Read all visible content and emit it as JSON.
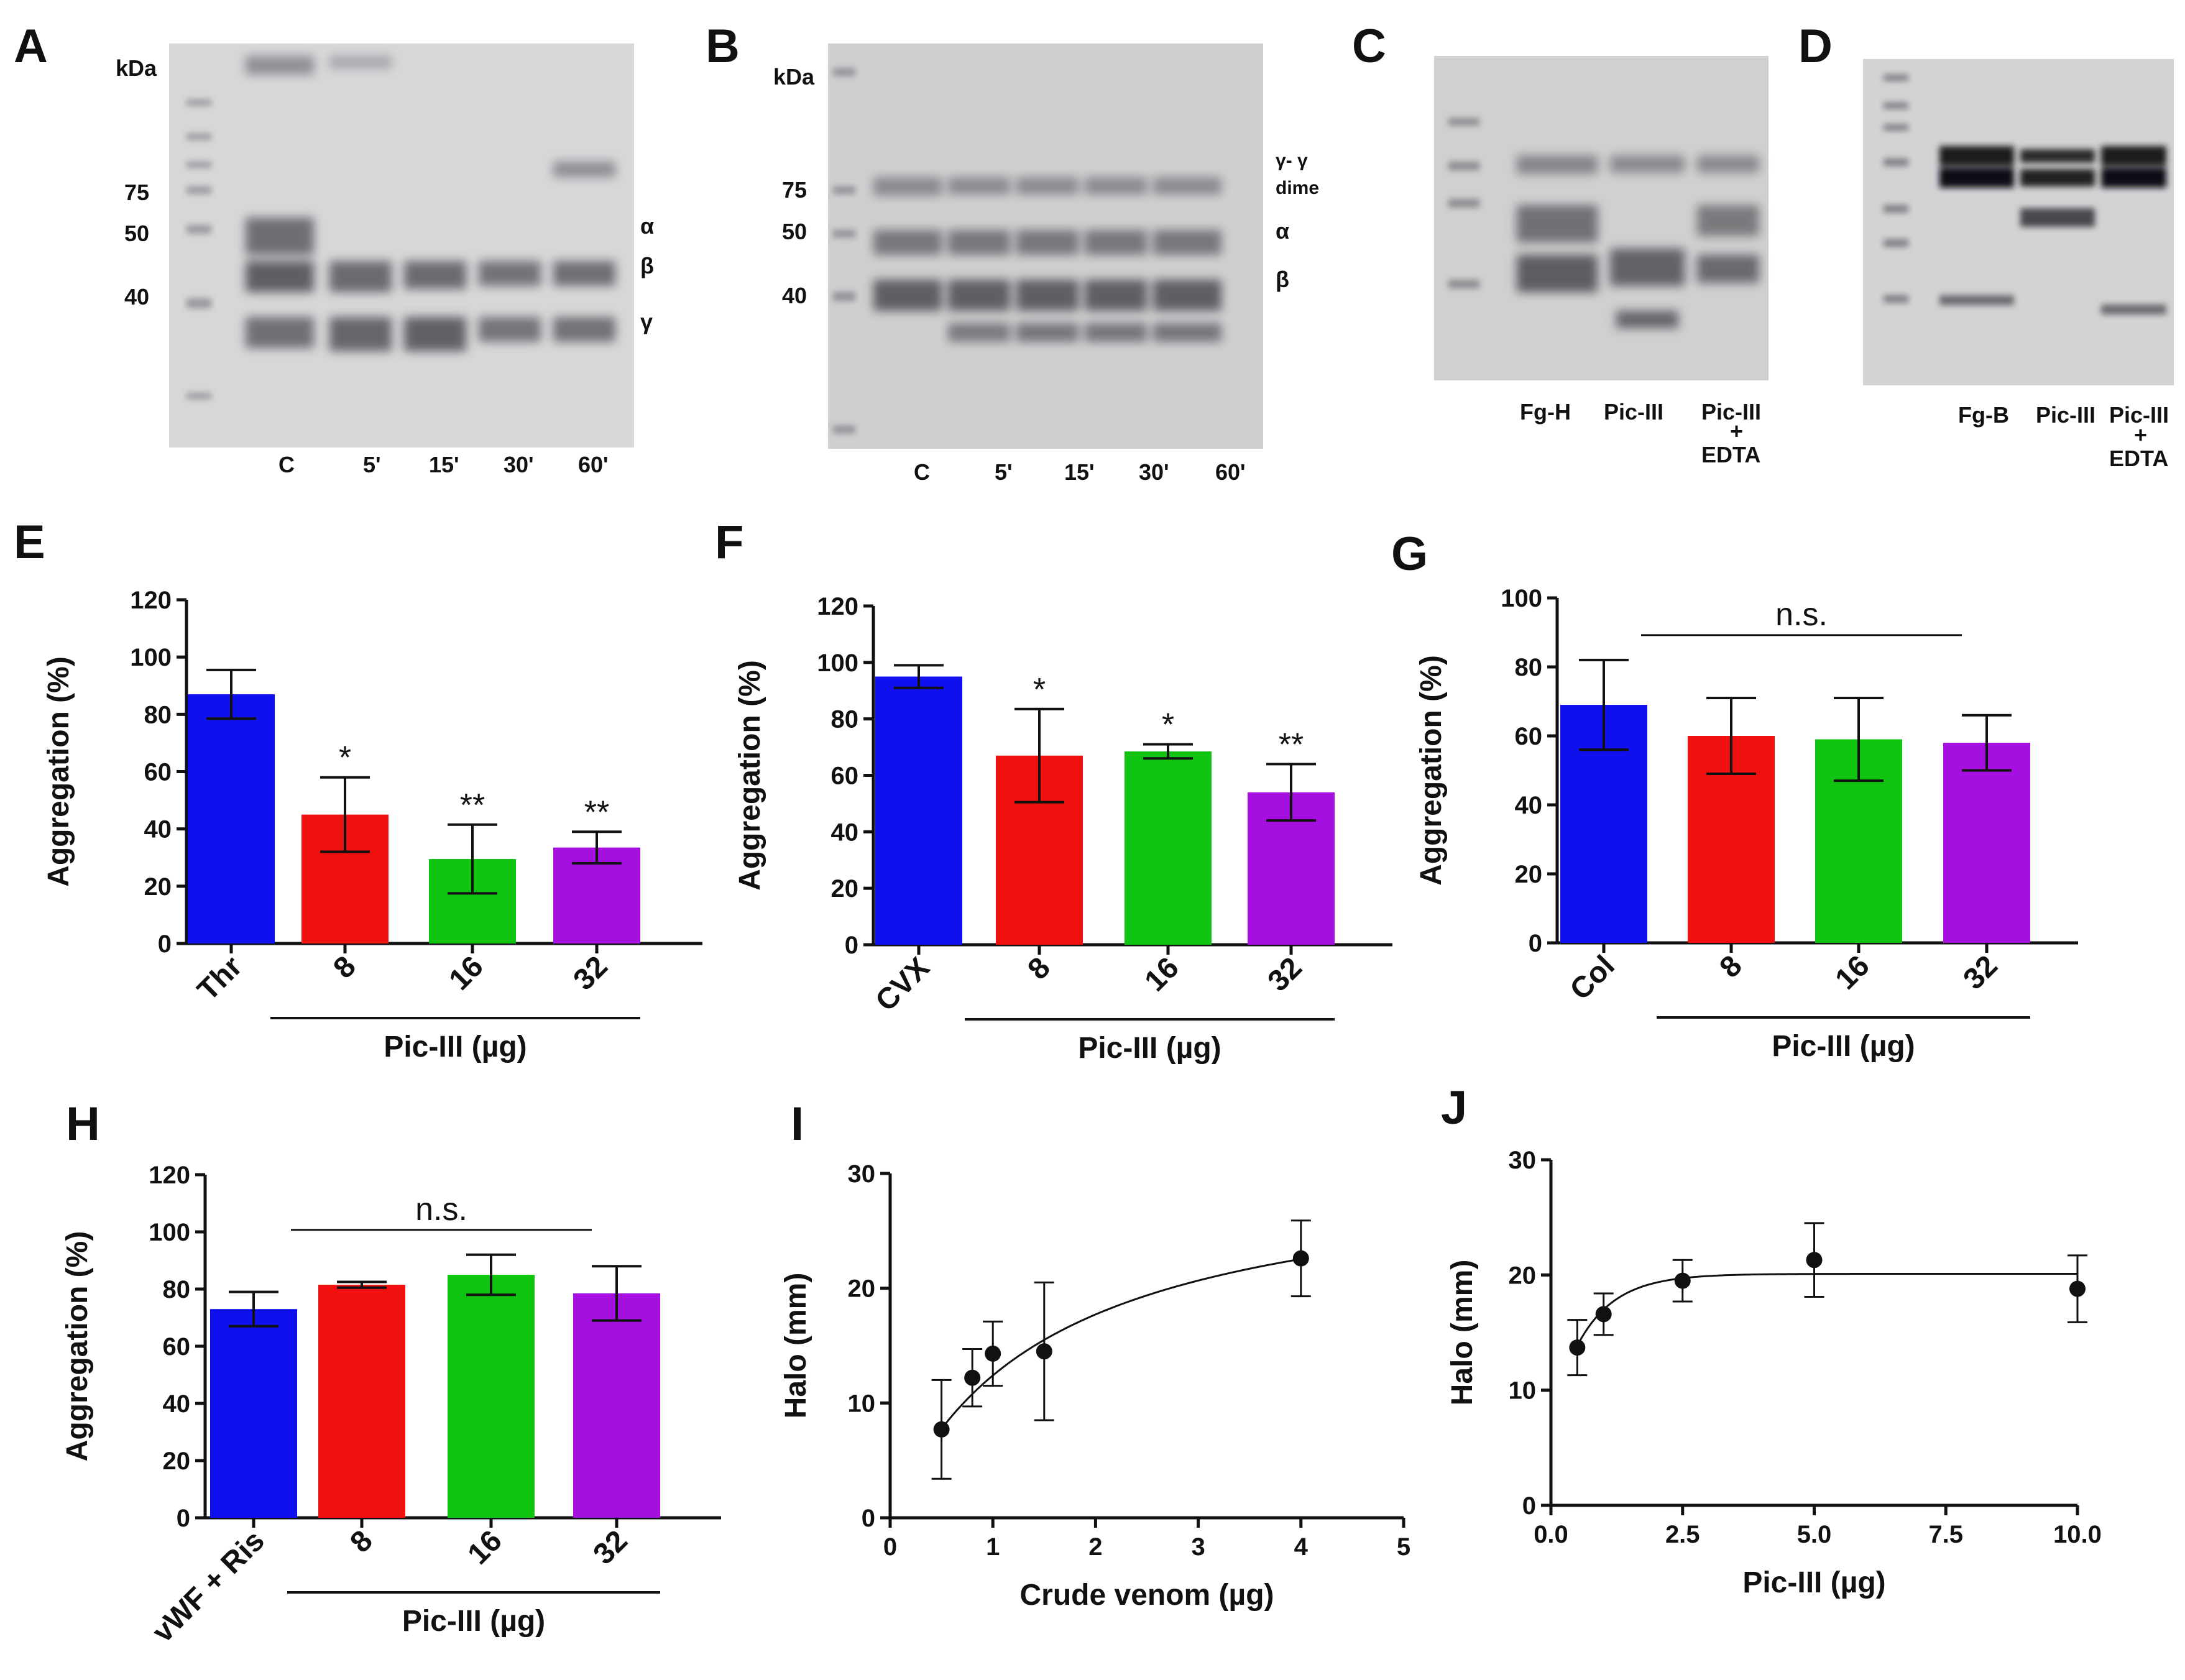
{
  "panels": {
    "A": {
      "label": "A",
      "kda": "kDa",
      "markers": [
        "75",
        "50",
        "40"
      ],
      "chains": [
        "α",
        "β",
        "γ"
      ],
      "lanes": [
        "C",
        "5'",
        "15'",
        "30'",
        "60'"
      ]
    },
    "B": {
      "label": "B",
      "kda": "kDa",
      "markers": [
        "75",
        "50",
        "40"
      ],
      "chains": [
        "γ- γ",
        "dime",
        "α",
        "β"
      ],
      "lanes": [
        "C",
        "5'",
        "15'",
        "30'",
        "60'"
      ]
    },
    "C": {
      "label": "C",
      "lanes": [
        "Fg-H",
        "Pic-III",
        "Pic-III",
        "+",
        "EDTA"
      ]
    },
    "D": {
      "label": "D",
      "lanes": [
        "Fg-B",
        "Pic-III",
        "Pic-III",
        "+",
        "EDTA"
      ]
    },
    "E": {
      "label": "E"
    },
    "F": {
      "label": "F"
    },
    "G": {
      "label": "G"
    },
    "H": {
      "label": "H"
    },
    "I": {
      "label": "I"
    },
    "J": {
      "label": "J"
    }
  },
  "colors": {
    "blue": "#1010ee",
    "red": "#f01010",
    "green": "#12c412",
    "purple": "#a510e0"
  },
  "chart_data": [
    {
      "id": "E",
      "type": "bar",
      "categories": [
        "Thr",
        "8",
        "16",
        "32"
      ],
      "values": [
        87,
        45,
        29.5,
        33.5
      ],
      "errors": [
        8.5,
        13,
        12,
        5.5
      ],
      "significance": [
        "",
        "*",
        "**",
        "**"
      ],
      "ylabel": "Aggregation (%)",
      "ylim": [
        0,
        120
      ],
      "yticks": [
        0,
        20,
        40,
        60,
        80,
        100,
        120
      ],
      "group_label": "Pic-III (µg)",
      "colors": [
        "#1010ee",
        "#f01010",
        "#12c412",
        "#a510e0"
      ]
    },
    {
      "id": "F",
      "type": "bar",
      "categories": [
        "CVX",
        "8",
        "16",
        "32"
      ],
      "values": [
        95,
        67,
        68.5,
        54
      ],
      "errors": [
        4,
        16.5,
        2.5,
        10
      ],
      "significance": [
        "",
        "*",
        "*",
        "**"
      ],
      "ylabel": "Aggregation (%)",
      "ylim": [
        0,
        120
      ],
      "yticks": [
        0,
        20,
        40,
        60,
        80,
        100,
        120
      ],
      "group_label": "Pic-III (µg)",
      "colors": [
        "#1010ee",
        "#f01010",
        "#12c412",
        "#a510e0"
      ]
    },
    {
      "id": "G",
      "type": "bar",
      "categories": [
        "Col",
        "8",
        "16",
        "32"
      ],
      "values": [
        69,
        60,
        59,
        58
      ],
      "errors": [
        13,
        11,
        12,
        8
      ],
      "significance": [
        "",
        "",
        "",
        ""
      ],
      "ns": "n.s.",
      "ylabel": "Aggregation (%)",
      "ylim": [
        0,
        100
      ],
      "yticks": [
        0,
        20,
        40,
        60,
        80,
        100
      ],
      "group_label": "Pic-III (µg)",
      "colors": [
        "#1010ee",
        "#f01010",
        "#12c412",
        "#a510e0"
      ]
    },
    {
      "id": "H",
      "type": "bar",
      "categories": [
        "vWF + Ris",
        "8",
        "16",
        "32"
      ],
      "values": [
        73,
        81.5,
        85,
        78.5
      ],
      "errors": [
        6,
        1,
        7,
        9.5
      ],
      "significance": [
        "",
        "",
        "",
        ""
      ],
      "ns": "n.s.",
      "ylabel": "Aggregation (%)",
      "ylim": [
        0,
        120
      ],
      "yticks": [
        0,
        20,
        40,
        60,
        80,
        100,
        120
      ],
      "group_label": "Pic-III (µg)",
      "colors": [
        "#1010ee",
        "#f01010",
        "#12c412",
        "#a510e0"
      ]
    },
    {
      "id": "I",
      "type": "scatter",
      "x": [
        0.5,
        0.8,
        1,
        1.5,
        4
      ],
      "y": [
        7.7,
        12.2,
        14.3,
        14.5,
        22.6
      ],
      "errors": [
        4.3,
        2.5,
        2.8,
        6,
        3.3
      ],
      "fit": "saturation",
      "xlabel": "Crude venom (µg)",
      "ylabel": "Halo (mm)",
      "xlim": [
        0,
        5
      ],
      "ylim": [
        0,
        30
      ],
      "xticks": [
        "0",
        "1",
        "2",
        "3",
        "4",
        "5"
      ],
      "yticks": [
        "0",
        "10",
        "20",
        "30"
      ]
    },
    {
      "id": "J",
      "type": "scatter",
      "x": [
        0.5,
        1,
        2.5,
        5,
        10
      ],
      "y": [
        13.7,
        16.6,
        19.5,
        21.3,
        18.8
      ],
      "errors": [
        2.4,
        1.8,
        1.8,
        3.2,
        2.9
      ],
      "fit": "exponential plateau",
      "xlabel": "Pic-III (µg)",
      "ylabel": "Halo (mm)",
      "xlim": [
        0,
        10
      ],
      "ylim": [
        0,
        30
      ],
      "xticks": [
        "0.0",
        "2.5",
        "5.0",
        "7.5",
        "10.0"
      ],
      "yticks": [
        "0",
        "10",
        "20",
        "30"
      ]
    }
  ]
}
